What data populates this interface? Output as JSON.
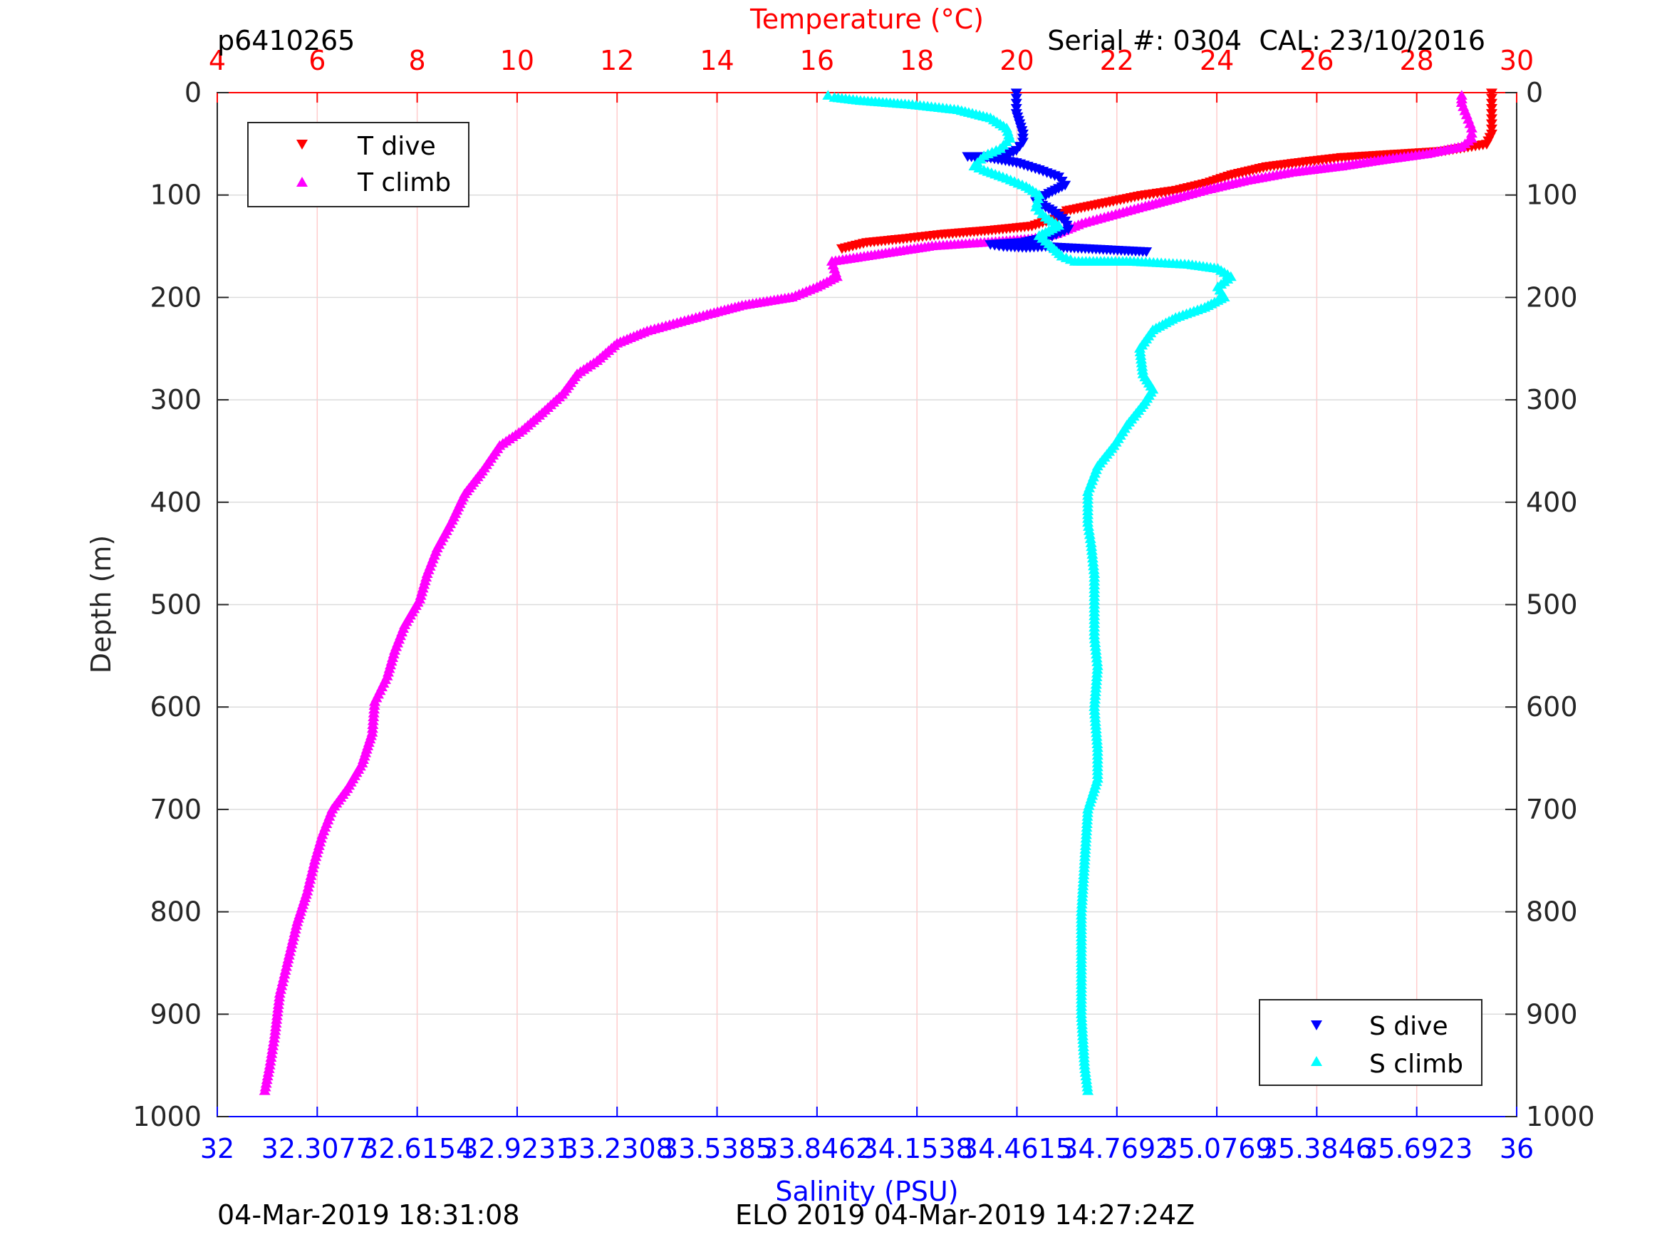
{
  "header": {
    "profile_id": "p6410265",
    "serial": "Serial #: 0304  CAL: 23/10/2016"
  },
  "footer": {
    "left_timestamp": "04-Mar-2019 18:31:08",
    "center_text": "ELO 2019 04-Mar-2019 14:27:24Z"
  },
  "colors": {
    "t_dive": "#ff0000",
    "t_climb": "#ff00ff",
    "s_dive": "#0000ff",
    "s_climb": "#00ffff",
    "temperature_axis": "#ff0000",
    "salinity_axis": "#0000ff",
    "grid_vertical": "#ffcccc",
    "grid_horizontal": "#dcdcdc"
  },
  "legend_top_left": {
    "items": [
      {
        "label": "T dive",
        "marker": "triangle-down",
        "color": "#ff0000"
      },
      {
        "label": "T climb",
        "marker": "triangle-up",
        "color": "#ff00ff"
      }
    ]
  },
  "legend_bottom_right": {
    "items": [
      {
        "label": "S dive",
        "marker": "triangle-down",
        "color": "#0000ff"
      },
      {
        "label": "S climb",
        "marker": "triangle-up",
        "color": "#00ffff"
      }
    ]
  },
  "chart_data": {
    "type": "scatter",
    "title": "",
    "temperature_axis": {
      "label": "Temperature (°C)",
      "range": [
        4,
        30
      ],
      "ticks": [
        "4",
        "6",
        "8",
        "10",
        "12",
        "14",
        "16",
        "18",
        "20",
        "22",
        "24",
        "26",
        "28",
        "30"
      ]
    },
    "salinity_axis": {
      "label": "Salinity (PSU)",
      "range": [
        32,
        36
      ],
      "ticks": [
        "32",
        "32.3077",
        "32.6154",
        "32.9231",
        "33.2308",
        "33.5385",
        "33.8462",
        "34.1538",
        "34.4615",
        "34.7692",
        "35.0769",
        "35.3846",
        "35.6923",
        "36"
      ]
    },
    "depth_axis": {
      "label": "Depth (m)",
      "range": [
        0,
        1000
      ],
      "reversed": true,
      "ticks": [
        "0",
        "100",
        "200",
        "300",
        "400",
        "500",
        "600",
        "700",
        "800",
        "900",
        "1000"
      ]
    },
    "grid": true,
    "series": [
      {
        "name": "T dive",
        "axis": "temperature",
        "marker": "triangle-down",
        "points": [
          {
            "x": 29.5,
            "depth": 0
          },
          {
            "x": 29.5,
            "depth": 10
          },
          {
            "x": 29.5,
            "depth": 20
          },
          {
            "x": 29.5,
            "depth": 30
          },
          {
            "x": 29.5,
            "depth": 40
          },
          {
            "x": 29.4,
            "depth": 50
          },
          {
            "x": 28.5,
            "depth": 57
          },
          {
            "x": 27.5,
            "depth": 60
          },
          {
            "x": 26.5,
            "depth": 63
          },
          {
            "x": 25.8,
            "depth": 67
          },
          {
            "x": 25.0,
            "depth": 72
          },
          {
            "x": 24.3,
            "depth": 80
          },
          {
            "x": 23.8,
            "depth": 88
          },
          {
            "x": 23.2,
            "depth": 95
          },
          {
            "x": 22.5,
            "depth": 100
          },
          {
            "x": 22.0,
            "depth": 105
          },
          {
            "x": 21.5,
            "depth": 110
          },
          {
            "x": 21.0,
            "depth": 115
          },
          {
            "x": 20.8,
            "depth": 122
          },
          {
            "x": 20.3,
            "depth": 130
          },
          {
            "x": 19.5,
            "depth": 134
          },
          {
            "x": 18.5,
            "depth": 138
          },
          {
            "x": 17.8,
            "depth": 142
          },
          {
            "x": 17.0,
            "depth": 146
          },
          {
            "x": 16.5,
            "depth": 152
          }
        ]
      },
      {
        "name": "T climb",
        "axis": "temperature",
        "marker": "triangle-up",
        "points": [
          {
            "x": 4.95,
            "depth": 975
          },
          {
            "x": 5.05,
            "depth": 950
          },
          {
            "x": 5.15,
            "depth": 920
          },
          {
            "x": 5.25,
            "depth": 880
          },
          {
            "x": 5.4,
            "depth": 850
          },
          {
            "x": 5.6,
            "depth": 810
          },
          {
            "x": 5.8,
            "depth": 780
          },
          {
            "x": 5.95,
            "depth": 750
          },
          {
            "x": 6.1,
            "depth": 725
          },
          {
            "x": 6.3,
            "depth": 700
          },
          {
            "x": 6.6,
            "depth": 680
          },
          {
            "x": 6.9,
            "depth": 655
          },
          {
            "x": 7.1,
            "depth": 625
          },
          {
            "x": 7.15,
            "depth": 595
          },
          {
            "x": 7.4,
            "depth": 570
          },
          {
            "x": 7.55,
            "depth": 545
          },
          {
            "x": 7.75,
            "depth": 520
          },
          {
            "x": 8.05,
            "depth": 495
          },
          {
            "x": 8.2,
            "depth": 470
          },
          {
            "x": 8.4,
            "depth": 445
          },
          {
            "x": 8.7,
            "depth": 418
          },
          {
            "x": 8.95,
            "depth": 392
          },
          {
            "x": 9.3,
            "depth": 370
          },
          {
            "x": 9.65,
            "depth": 345
          },
          {
            "x": 10.1,
            "depth": 330
          },
          {
            "x": 10.5,
            "depth": 313
          },
          {
            "x": 10.9,
            "depth": 295
          },
          {
            "x": 11.2,
            "depth": 275
          },
          {
            "x": 11.6,
            "depth": 262
          },
          {
            "x": 12.0,
            "depth": 245
          },
          {
            "x": 12.6,
            "depth": 233
          },
          {
            "x": 13.2,
            "depth": 225
          },
          {
            "x": 13.8,
            "depth": 217
          },
          {
            "x": 14.5,
            "depth": 208
          },
          {
            "x": 15.5,
            "depth": 200
          },
          {
            "x": 16.0,
            "depth": 190
          },
          {
            "x": 16.4,
            "depth": 180
          },
          {
            "x": 16.3,
            "depth": 165
          },
          {
            "x": 18.3,
            "depth": 150
          },
          {
            "x": 19.5,
            "depth": 146
          },
          {
            "x": 20.3,
            "depth": 143
          },
          {
            "x": 20.8,
            "depth": 138
          },
          {
            "x": 21.3,
            "depth": 128
          },
          {
            "x": 21.9,
            "depth": 120
          },
          {
            "x": 22.5,
            "depth": 112
          },
          {
            "x": 23.2,
            "depth": 103
          },
          {
            "x": 23.8,
            "depth": 95
          },
          {
            "x": 24.6,
            "depth": 86
          },
          {
            "x": 25.5,
            "depth": 78
          },
          {
            "x": 26.5,
            "depth": 72
          },
          {
            "x": 27.3,
            "depth": 66
          },
          {
            "x": 28.2,
            "depth": 60
          },
          {
            "x": 28.9,
            "depth": 53
          },
          {
            "x": 29.1,
            "depth": 45
          },
          {
            "x": 29.1,
            "depth": 35
          },
          {
            "x": 29.0,
            "depth": 22
          },
          {
            "x": 28.9,
            "depth": 10
          },
          {
            "x": 28.9,
            "depth": 3
          }
        ]
      },
      {
        "name": "S dive",
        "axis": "salinity",
        "marker": "triangle-down",
        "points": [
          {
            "x": 34.46,
            "depth": 0
          },
          {
            "x": 34.46,
            "depth": 10
          },
          {
            "x": 34.46,
            "depth": 20
          },
          {
            "x": 34.47,
            "depth": 30
          },
          {
            "x": 34.48,
            "depth": 40
          },
          {
            "x": 34.48,
            "depth": 48
          },
          {
            "x": 34.46,
            "depth": 56
          },
          {
            "x": 34.42,
            "depth": 62
          },
          {
            "x": 34.31,
            "depth": 62
          },
          {
            "x": 34.37,
            "depth": 63
          },
          {
            "x": 34.46,
            "depth": 68
          },
          {
            "x": 34.53,
            "depth": 75
          },
          {
            "x": 34.59,
            "depth": 82
          },
          {
            "x": 34.61,
            "depth": 90
          },
          {
            "x": 34.56,
            "depth": 98
          },
          {
            "x": 34.52,
            "depth": 106
          },
          {
            "x": 34.57,
            "depth": 115
          },
          {
            "x": 34.61,
            "depth": 125
          },
          {
            "x": 34.62,
            "depth": 133
          },
          {
            "x": 34.57,
            "depth": 140
          },
          {
            "x": 34.48,
            "depth": 146
          },
          {
            "x": 34.38,
            "depth": 148
          },
          {
            "x": 34.42,
            "depth": 150
          },
          {
            "x": 34.49,
            "depth": 151
          },
          {
            "x": 34.55,
            "depth": 150
          },
          {
            "x": 34.86,
            "depth": 155
          }
        ]
      },
      {
        "name": "S climb",
        "axis": "salinity",
        "marker": "triangle-up",
        "points": [
          {
            "x": 34.68,
            "depth": 975
          },
          {
            "x": 34.67,
            "depth": 950
          },
          {
            "x": 34.66,
            "depth": 900
          },
          {
            "x": 34.66,
            "depth": 850
          },
          {
            "x": 34.66,
            "depth": 800
          },
          {
            "x": 34.67,
            "depth": 750
          },
          {
            "x": 34.68,
            "depth": 700
          },
          {
            "x": 34.71,
            "depth": 670
          },
          {
            "x": 34.71,
            "depth": 640
          },
          {
            "x": 34.7,
            "depth": 600
          },
          {
            "x": 34.71,
            "depth": 560
          },
          {
            "x": 34.7,
            "depth": 530
          },
          {
            "x": 34.7,
            "depth": 500
          },
          {
            "x": 34.7,
            "depth": 470
          },
          {
            "x": 34.69,
            "depth": 440
          },
          {
            "x": 34.68,
            "depth": 420
          },
          {
            "x": 34.68,
            "depth": 390
          },
          {
            "x": 34.71,
            "depth": 365
          },
          {
            "x": 34.76,
            "depth": 345
          },
          {
            "x": 34.8,
            "depth": 325
          },
          {
            "x": 34.85,
            "depth": 305
          },
          {
            "x": 34.88,
            "depth": 290
          },
          {
            "x": 34.85,
            "depth": 275
          },
          {
            "x": 34.84,
            "depth": 250
          },
          {
            "x": 34.88,
            "depth": 232
          },
          {
            "x": 34.95,
            "depth": 220
          },
          {
            "x": 35.04,
            "depth": 210
          },
          {
            "x": 35.1,
            "depth": 200
          },
          {
            "x": 35.08,
            "depth": 190
          },
          {
            "x": 35.12,
            "depth": 180
          },
          {
            "x": 35.08,
            "depth": 172
          },
          {
            "x": 34.99,
            "depth": 168
          },
          {
            "x": 34.87,
            "depth": 166
          },
          {
            "x": 34.81,
            "depth": 165
          },
          {
            "x": 34.64,
            "depth": 165
          },
          {
            "x": 34.6,
            "depth": 160
          },
          {
            "x": 34.56,
            "depth": 148
          },
          {
            "x": 34.53,
            "depth": 140
          },
          {
            "x": 34.59,
            "depth": 130
          },
          {
            "x": 34.55,
            "depth": 122
          },
          {
            "x": 34.52,
            "depth": 112
          },
          {
            "x": 34.53,
            "depth": 100
          },
          {
            "x": 34.49,
            "depth": 92
          },
          {
            "x": 34.43,
            "depth": 84
          },
          {
            "x": 34.36,
            "depth": 76
          },
          {
            "x": 34.33,
            "depth": 72
          },
          {
            "x": 34.36,
            "depth": 62
          },
          {
            "x": 34.41,
            "depth": 55
          },
          {
            "x": 34.44,
            "depth": 45
          },
          {
            "x": 34.43,
            "depth": 35
          },
          {
            "x": 34.38,
            "depth": 25
          },
          {
            "x": 34.28,
            "depth": 17
          },
          {
            "x": 34.14,
            "depth": 12
          },
          {
            "x": 33.98,
            "depth": 8
          },
          {
            "x": 33.9,
            "depth": 5
          },
          {
            "x": 33.88,
            "depth": 3
          }
        ]
      }
    ]
  }
}
